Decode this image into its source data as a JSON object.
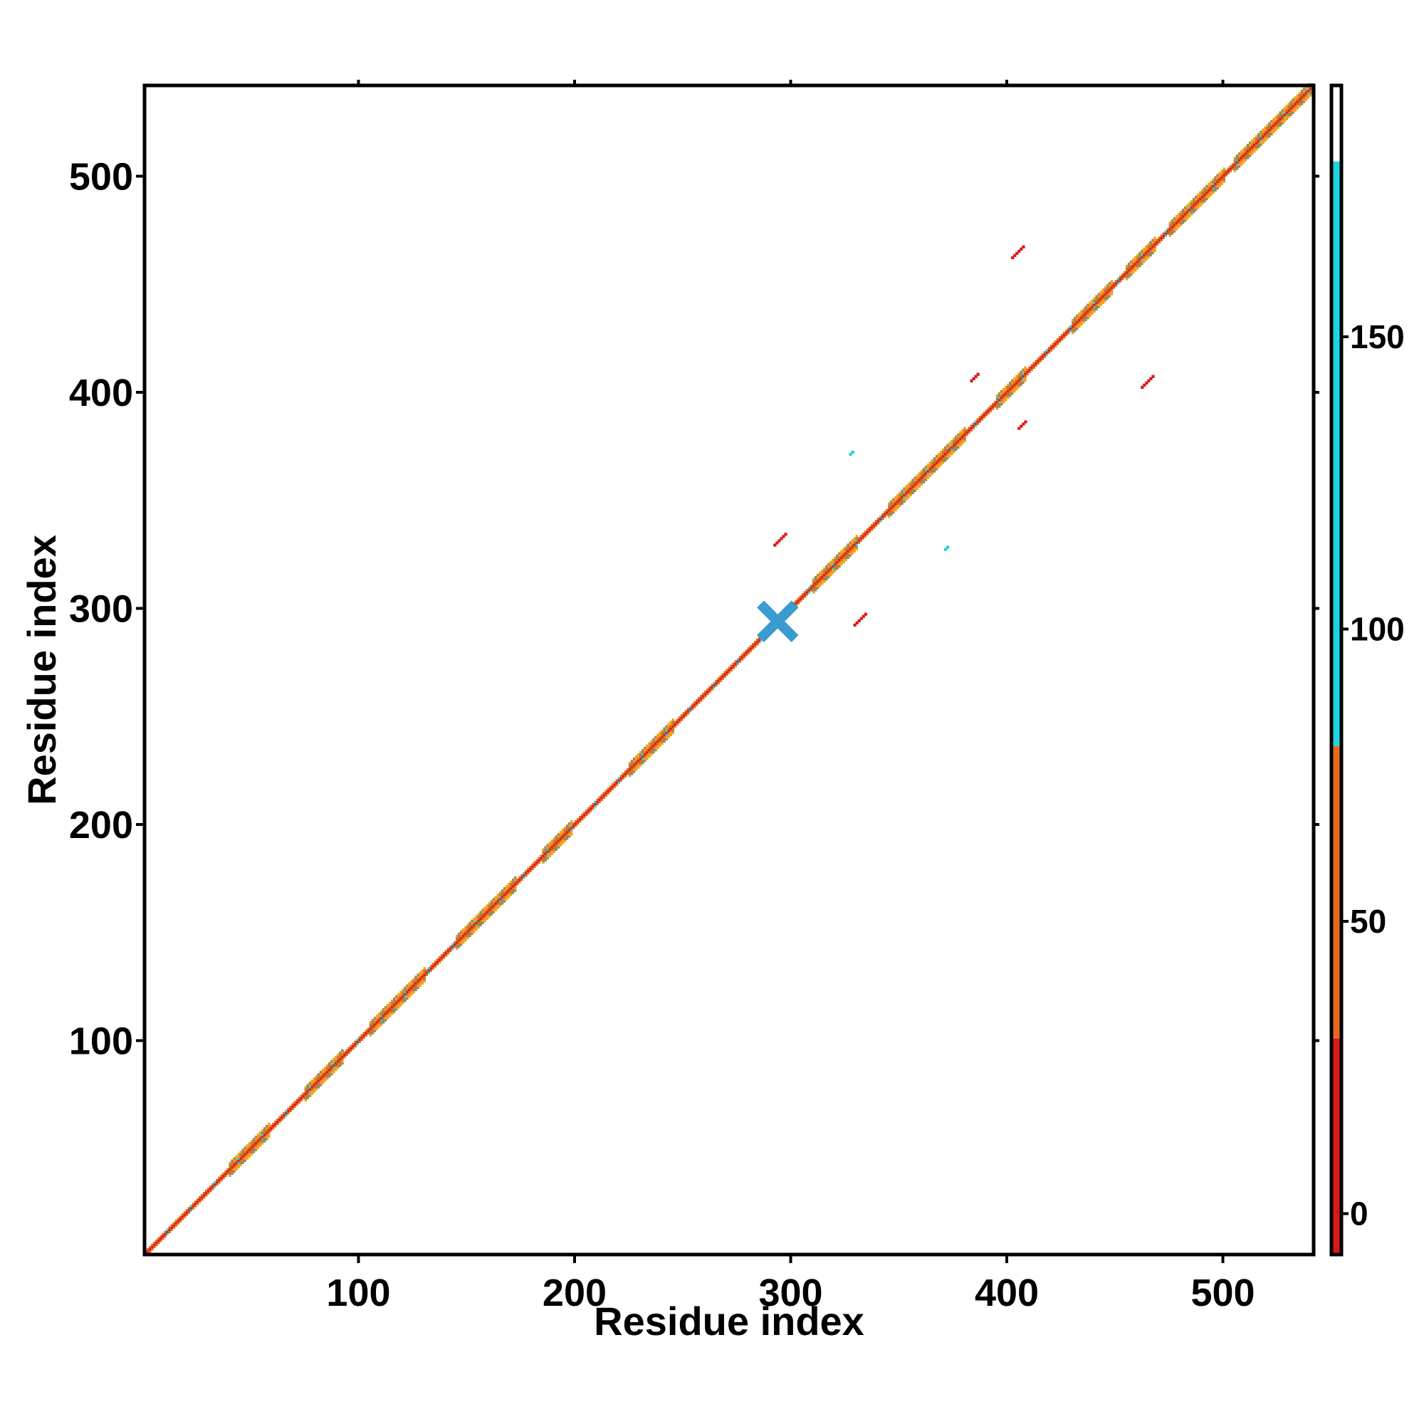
{
  "chart_data": {
    "type": "heatmap",
    "title": "",
    "xlabel": "Residue index",
    "ylabel": "Residue index",
    "xlim": [
      1,
      542
    ],
    "ylim": [
      1,
      542
    ],
    "x_ticks": [
      100,
      200,
      300,
      400,
      500
    ],
    "y_ticks": [
      100,
      200,
      300,
      400,
      500
    ],
    "x_tick_labels": [
      "100",
      "200",
      "300",
      "400",
      "500"
    ],
    "y_tick_labels": [
      "100",
      "200",
      "300",
      "400",
      "500"
    ],
    "grid": false,
    "colorbar": {
      "ticks": [
        0,
        50,
        100,
        150
      ],
      "tick_labels": [
        "0",
        "50",
        "100",
        "150"
      ],
      "range": [
        -7,
        193
      ],
      "bands": [
        {
          "from": -7,
          "to": 30,
          "color": "#d7191c"
        },
        {
          "from": 30,
          "to": 80,
          "color": "#e66a1e"
        },
        {
          "from": 80,
          "to": 180,
          "color": "#1fd4e0"
        },
        {
          "from": 180,
          "to": 193,
          "color": "#ffffff"
        }
      ]
    },
    "diagonal": {
      "start": 1,
      "end": 542,
      "colors": [
        "#d7191c",
        "#e66a1e",
        "#f2a31e",
        "#9a8a5a",
        "#1fd4e0"
      ]
    },
    "broad_segments": [
      [
        40,
        58
      ],
      [
        75,
        92
      ],
      [
        105,
        130
      ],
      [
        145,
        172
      ],
      [
        185,
        198
      ],
      [
        225,
        245
      ],
      [
        310,
        330
      ],
      [
        345,
        380
      ],
      [
        395,
        408
      ],
      [
        430,
        448
      ],
      [
        455,
        468
      ],
      [
        475,
        500
      ],
      [
        505,
        540
      ]
    ],
    "contact_patches": [
      {
        "i": 297,
        "j": 334,
        "size": 6,
        "color": "#d7191c"
      },
      {
        "i": 334,
        "j": 297,
        "size": 6,
        "color": "#d7191c"
      },
      {
        "i": 407,
        "j": 467,
        "size": 6,
        "color": "#d7191c"
      },
      {
        "i": 467,
        "j": 407,
        "size": 6,
        "color": "#d7191c"
      },
      {
        "i": 386,
        "j": 408,
        "size": 4,
        "color": "#d7191c"
      },
      {
        "i": 408,
        "j": 386,
        "size": 4,
        "color": "#d7191c"
      },
      {
        "i": 372,
        "j": 328,
        "size": 2,
        "color": "#1fd4e0"
      },
      {
        "i": 328,
        "j": 372,
        "size": 2,
        "color": "#1fd4e0"
      }
    ],
    "cross_marker": {
      "center": 294,
      "half_length": 8,
      "color": "#3a9bd1"
    }
  }
}
